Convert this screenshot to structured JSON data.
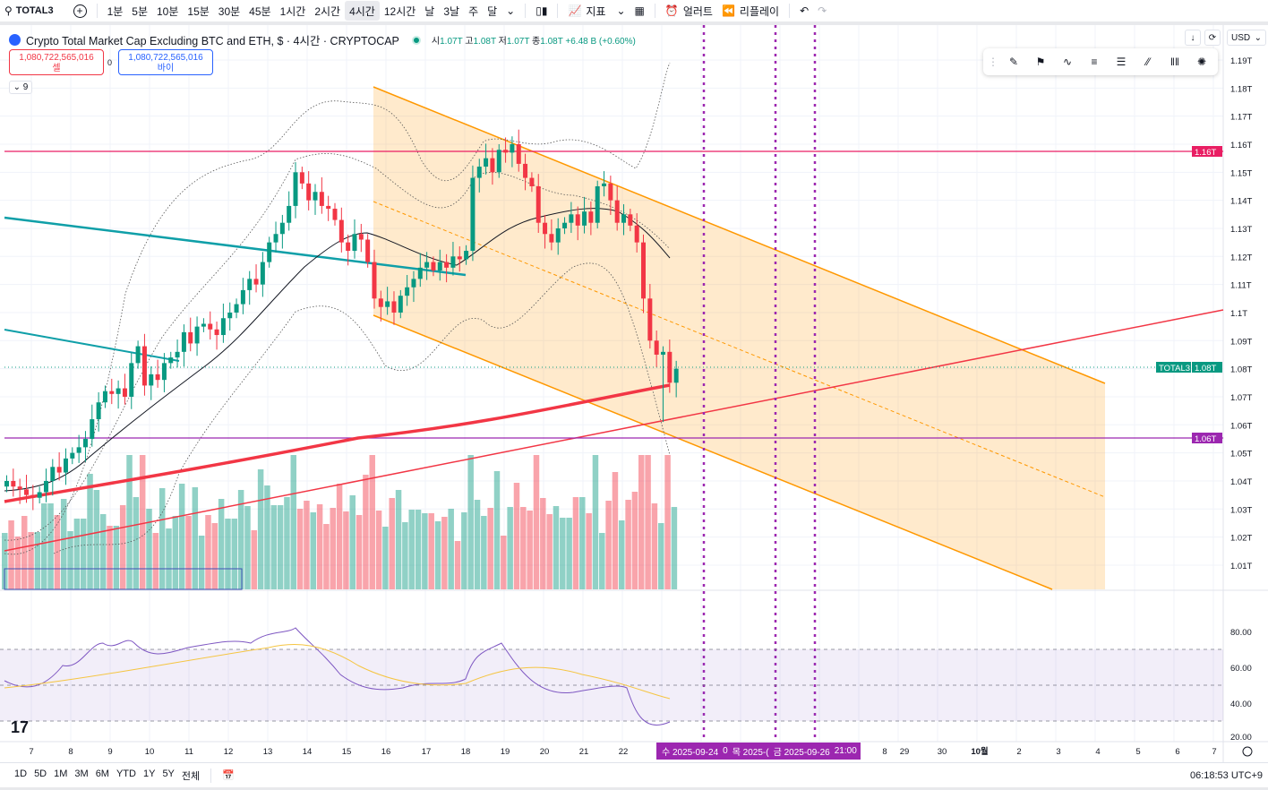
{
  "toolbar": {
    "symbol": "TOTAL3",
    "intervals": [
      "1분",
      "5분",
      "10분",
      "15분",
      "30분",
      "45분",
      "1시간",
      "2시간",
      "4시간",
      "12시간",
      "날",
      "3날",
      "주",
      "달"
    ],
    "active_interval": "4시간",
    "indicators": "지표",
    "alerts": "얼러트",
    "replay": "리플레이"
  },
  "legend": {
    "title": "Crypto Total Market Cap Excluding BTC and ETH, $ · 4시간 · CRYPTOCAP",
    "o_label": "시",
    "o": "1.07T",
    "h_label": "고",
    "h": "1.08T",
    "l_label": "저",
    "l": "1.07T",
    "c_label": "종",
    "c": "1.08T",
    "change": "+6.48 B (+0.60%)"
  },
  "trade": {
    "sell_price": "1,080,722,565,016",
    "sell_label": "셀",
    "spread": "0",
    "buy_price": "1,080,722,565,016",
    "buy_label": "바이",
    "collapse": "9"
  },
  "scale": {
    "currency": "USD"
  },
  "price_axis": [
    "1.19T",
    "1.18T",
    "1.17T",
    "1.16T",
    "1.15T",
    "1.14T",
    "1.13T",
    "1.12T",
    "1.11T",
    "1.1T",
    "1.09T",
    "1.08T",
    "1.07T",
    "1.06T",
    "1.05T",
    "1.04T",
    "1.03T",
    "1.02T",
    "1.01T"
  ],
  "badges": {
    "red_line": "1.16T",
    "symbol": "TOTAL3",
    "last": "1.08T",
    "purple_line": "1.06T"
  },
  "rsi_axis": [
    "80.00",
    "60.00",
    "40.00",
    "20.00"
  ],
  "time_axis": [
    "7",
    "8",
    "9",
    "10",
    "11",
    "12",
    "13",
    "14",
    "15",
    "16",
    "17",
    "18",
    "19",
    "20",
    "21",
    "22",
    "8",
    "29",
    "30",
    "10월",
    "2",
    "3",
    "4",
    "5",
    "6",
    "7"
  ],
  "time_label": {
    "a": "수 2025-09-24",
    "b": "0",
    "c": "목 2025-(",
    "d": "금 2025-09-26",
    "e": "21:00"
  },
  "ranges": [
    "1D",
    "5D",
    "1M",
    "3M",
    "6M",
    "YTD",
    "1Y",
    "5Y",
    "전체"
  ],
  "clock": "06:18:53 UTC+9",
  "logo_text": "17",
  "colors": {
    "up": "#089981",
    "down": "#f23645",
    "purple": "#9c27b0",
    "channel": "#ff9800",
    "teal_line": "#0f9fa8"
  },
  "candles_close": [
    1.04,
    1.038,
    1.037,
    1.035,
    1.034,
    1.036,
    1.04,
    1.045,
    1.043,
    1.048,
    1.05,
    1.052,
    1.055,
    1.062,
    1.068,
    1.072,
    1.071,
    1.073,
    1.07,
    1.082,
    1.088,
    1.074,
    1.078,
    1.076,
    1.082,
    1.084,
    1.086,
    1.093,
    1.089,
    1.095,
    1.096,
    1.094,
    1.092,
    1.098,
    1.1,
    1.103,
    1.108,
    1.112,
    1.11,
    1.118,
    1.125,
    1.128,
    1.132,
    1.138,
    1.15,
    1.146,
    1.14,
    1.143,
    1.138,
    1.137,
    1.133,
    1.125,
    1.122,
    1.128,
    1.126,
    1.118,
    1.105,
    1.102,
    1.104,
    1.1,
    1.106,
    1.109,
    1.112,
    1.116,
    1.118,
    1.115,
    1.118,
    1.116,
    1.12,
    1.119,
    1.122,
    1.148,
    1.152,
    1.155,
    1.15,
    1.158,
    1.157,
    1.16,
    1.153,
    1.148,
    1.145,
    1.132,
    1.128,
    1.125,
    1.13,
    1.132,
    1.135,
    1.131,
    1.136,
    1.132,
    1.145,
    1.146,
    1.14,
    1.132,
    1.135,
    1.131,
    1.125,
    1.105,
    1.09,
    1.085,
    1.086,
    1.075,
    1.08
  ]
}
